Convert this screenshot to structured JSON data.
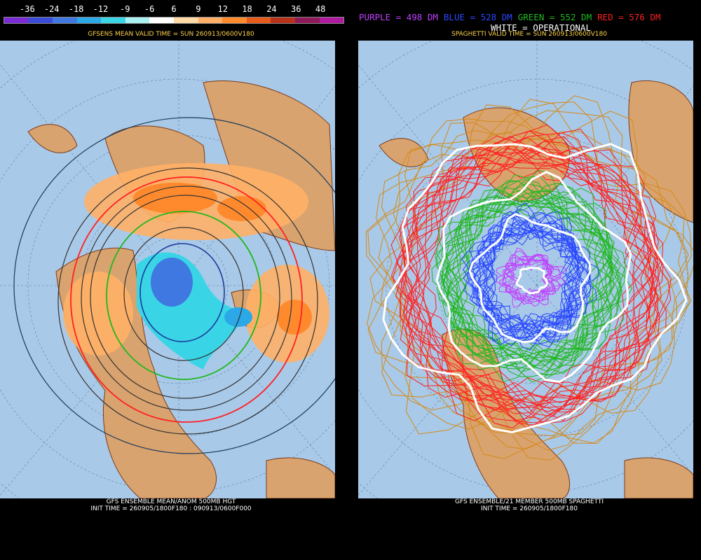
{
  "colorbar": {
    "labels": [
      "-36",
      "-24",
      "-18",
      "-12",
      "-9",
      "-6",
      "6",
      "9",
      "12",
      "18",
      "24",
      "36",
      "48"
    ],
    "swatches": [
      "#7b2bd4",
      "#3b4bd8",
      "#3f78e0",
      "#2aa8e8",
      "#39d4e6",
      "#a9f1f1",
      "#ffffff",
      "#ffd9a6",
      "#ffb066",
      "#ff8a2e",
      "#e65a1a",
      "#b8321a",
      "#8e1a5a",
      "#b01aa0"
    ]
  },
  "left_panel": {
    "title": "GFSENS MEAN VALID TIME = SUN 260913/0600V180",
    "footer_line1": "GFS ENSEMBLE MEAN/ANOM 500MB HGT",
    "footer_line2": "INIT TIME = 260905/1800F180 : 090913/0600F000"
  },
  "right_panel": {
    "legend": [
      {
        "text": "PURPLE = 498 DM",
        "color": "#c040ff"
      },
      {
        "text": "BLUE = 528 DM",
        "color": "#2a48ff"
      },
      {
        "text": "GREEN = 552 DM",
        "color": "#1fb81f"
      },
      {
        "text": "RED = 576 DM",
        "color": "#ff2020"
      }
    ],
    "white_label": "WHITE = OPERATIONAL",
    "title": "SPAGHETTI VALID TIME = SUN 260913/0600V180",
    "footer_line1": "GFS ENSEMBLE/21 MEMBER 500MB SPAGHETTI",
    "footer_line2": "INIT TIME = 260905/1800F180"
  },
  "colors": {
    "ocean": "#a9c9e8",
    "land": "#d9a36f",
    "coast": "#7a3a1a",
    "purple": "#c040ff",
    "blue": "#2a48ff",
    "green": "#1fb81f",
    "red": "#ff2020",
    "orange_line": "#d48a18",
    "white": "#ffffff"
  }
}
